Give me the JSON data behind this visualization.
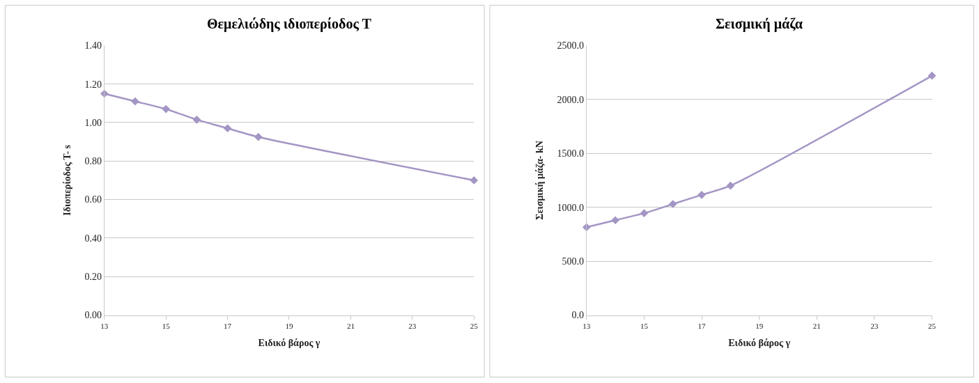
{
  "chart_data": [
    {
      "type": "line",
      "title": "Θεμελιώδης ιδιοπερίοδος Τ",
      "xlabel": "Ειδικό βάρος γ",
      "ylabel": "Ιδιοπερίοδος Τ- s",
      "x": [
        13,
        14,
        15,
        16,
        17,
        18,
        25
      ],
      "series": [
        {
          "color": "#a395c4",
          "values": [
            1.15,
            1.11,
            1.07,
            1.015,
            0.97,
            0.925,
            0.7
          ]
        }
      ],
      "xlim": [
        13,
        25
      ],
      "xticks": [
        13,
        15,
        17,
        19,
        21,
        23,
        25
      ],
      "ylim": [
        0,
        1.4
      ],
      "yticks": [
        {
          "value": 0,
          "label": "0.00"
        },
        {
          "value": 0.2,
          "label": "0.20"
        },
        {
          "value": 0.4,
          "label": "0.40"
        },
        {
          "value": 0.6,
          "label": "0.60"
        },
        {
          "value": 0.8,
          "label": "0.80"
        },
        {
          "value": 1.0,
          "label": "1.00"
        },
        {
          "value": 1.2,
          "label": "1.20"
        },
        {
          "value": 1.4,
          "label": "1.40"
        }
      ],
      "grid": "y",
      "marker": "diamond",
      "line_style": "solid"
    },
    {
      "type": "line",
      "title": "Σεισμική μάζα",
      "xlabel": "Ειδικό βάρος γ",
      "ylabel": "Σεισμική μάζα- kN",
      "x": [
        13,
        14,
        15,
        16,
        17,
        18,
        25
      ],
      "series": [
        {
          "color": "#a395c4",
          "values": [
            815,
            880,
            945,
            1030,
            1115,
            1200,
            2220
          ]
        }
      ],
      "xlim": [
        13,
        25
      ],
      "xticks": [
        13,
        15,
        17,
        19,
        21,
        23,
        25
      ],
      "ylim": [
        0,
        2500
      ],
      "yticks": [
        {
          "value": 0,
          "label": "0.0"
        },
        {
          "value": 500,
          "label": "500.0"
        },
        {
          "value": 1000,
          "label": "1000.0"
        },
        {
          "value": 1500,
          "label": "1500.0"
        },
        {
          "value": 2000,
          "label": "2000.0"
        },
        {
          "value": 2500,
          "label": "2500.0"
        }
      ],
      "grid": "y",
      "marker": "diamond",
      "line_style": "solid"
    }
  ]
}
